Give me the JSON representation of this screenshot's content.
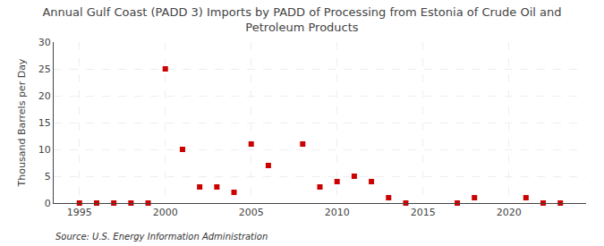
{
  "chart_data": {
    "type": "scatter",
    "title": "Annual Gulf Coast (PADD 3) Imports by PADD of Processing from Estonia of Crude Oil and\nPetroleum Products",
    "ylabel": "Thousand Barrels per Day",
    "source": "Source: U.S. Energy Information Administration",
    "x": [
      1995,
      1996,
      1997,
      1998,
      1999,
      2000,
      2001,
      2002,
      2003,
      2004,
      2005,
      2006,
      2008,
      2009,
      2010,
      2011,
      2012,
      2013,
      2014,
      2017,
      2018,
      2021,
      2022,
      2023
    ],
    "values": [
      0,
      0,
      0,
      0,
      0,
      25,
      10,
      3,
      3,
      2,
      11,
      7,
      11,
      3,
      4,
      5,
      4,
      1,
      0,
      0,
      1,
      1,
      0,
      0
    ],
    "color": "#cc0000",
    "marker": "square",
    "xlim": [
      1993.5,
      2024.5
    ],
    "ylim": [
      0,
      30
    ],
    "xticks": [
      1995,
      2000,
      2005,
      2010,
      2015,
      2020
    ],
    "yticks": [
      0,
      5,
      10,
      15,
      20,
      25,
      30
    ],
    "grid": true
  }
}
